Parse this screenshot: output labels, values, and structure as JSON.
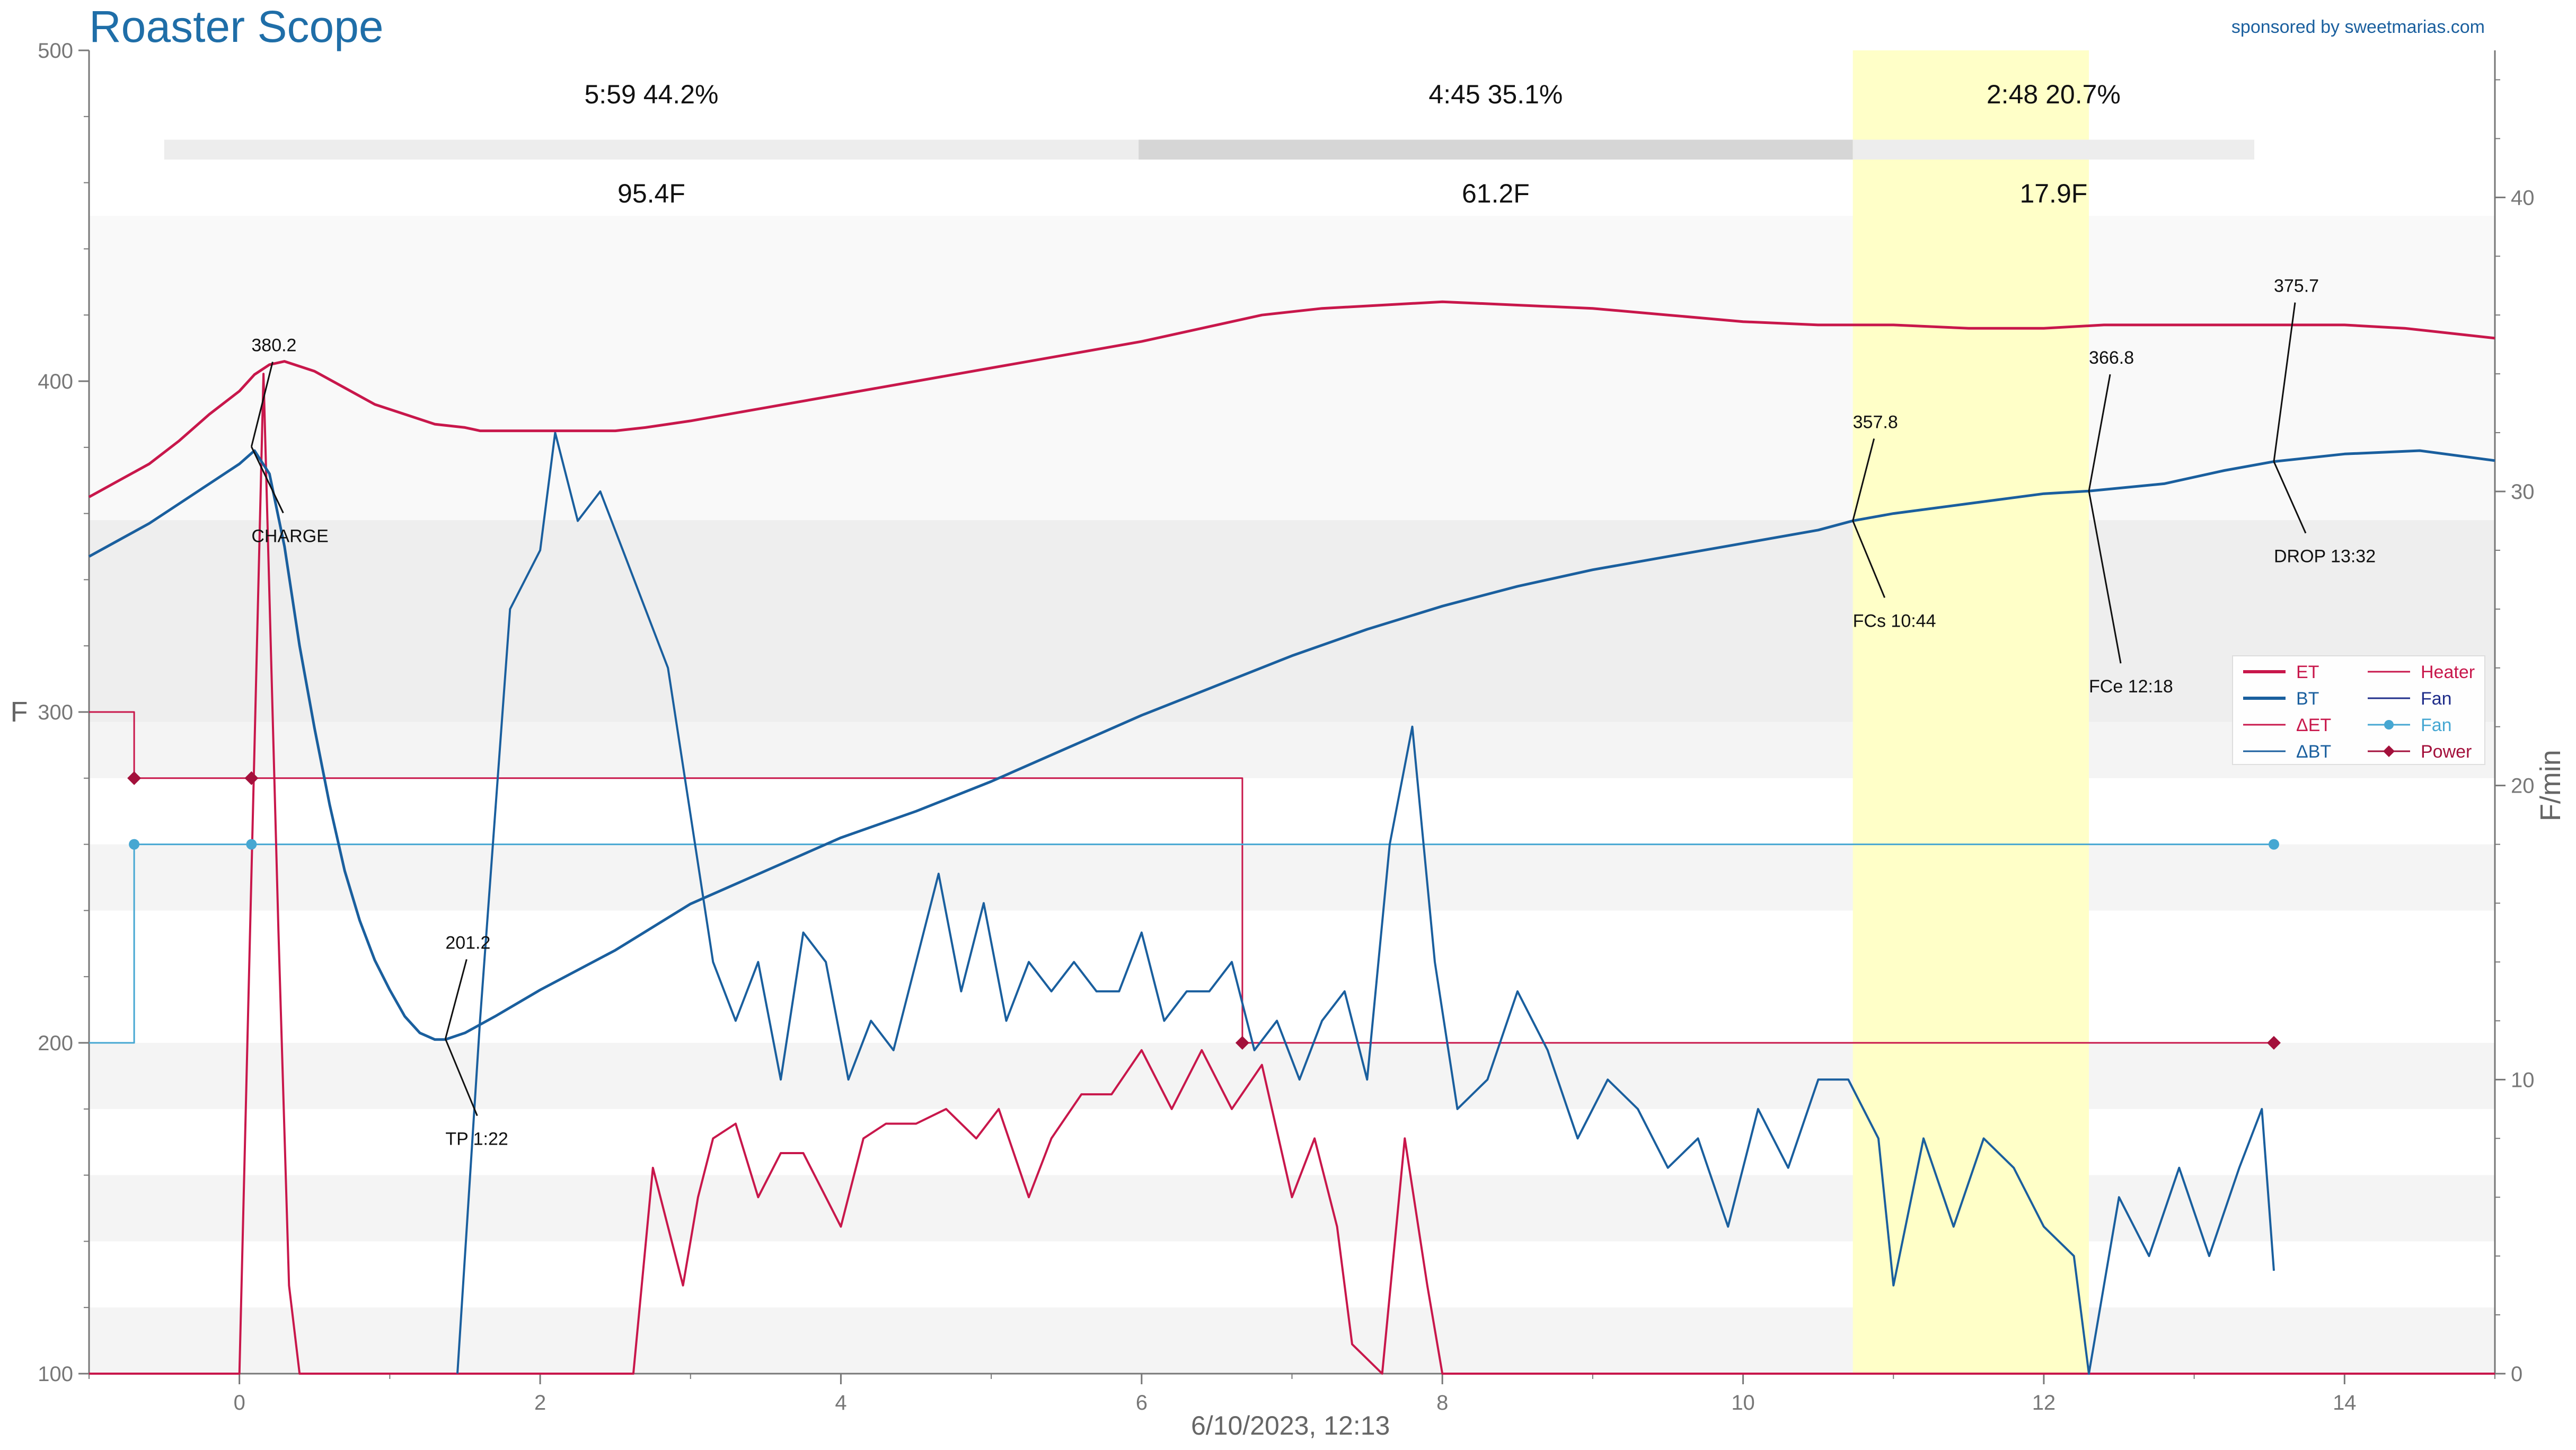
{
  "app": {
    "title": "Roaster Scope",
    "sponsor": "sponsored by sweetmarias.com"
  },
  "chart_data": {
    "type": "line",
    "date_label": "6/10/2023, 12:13",
    "x_axis": {
      "label": "",
      "range": [
        -1.0,
        15.0
      ],
      "ticks": [
        "0",
        "2",
        "4",
        "6",
        "8",
        "10",
        "12",
        "14"
      ]
    },
    "y_left": {
      "label": "F",
      "range": [
        100,
        500
      ],
      "ticks": [
        "100",
        "200",
        "300",
        "400",
        "500"
      ]
    },
    "y_right": {
      "label": "F/min",
      "range": [
        0,
        45
      ],
      "ticks": [
        "0",
        "10",
        "20",
        "30",
        "40"
      ]
    },
    "first_crack_window": {
      "start": 10.73,
      "end": 12.3,
      "color": "#ffffc8"
    },
    "phases": [
      {
        "time": "5:59",
        "percent": "44.2%",
        "rise": "95.4F",
        "start": -0.5,
        "end": 5.98
      },
      {
        "time": "4:45",
        "percent": "35.1%",
        "rise": "61.2F",
        "start": 5.98,
        "end": 10.73
      },
      {
        "time": "2:48",
        "percent": "20.7%",
        "rise": "17.9F",
        "start": 10.73,
        "end": 13.53
      }
    ],
    "legend": {
      "placement": "right",
      "items": [
        {
          "label": "ET",
          "color": "#c8174b",
          "style": "thick"
        },
        {
          "label": "Heater",
          "color": "#c8174b",
          "style": "thin"
        },
        {
          "label": "BT",
          "color": "#1a5f9e",
          "style": "thick"
        },
        {
          "label": "Fan",
          "color": "#1f2d8a",
          "style": "thin"
        },
        {
          "label": "ΔET",
          "color": "#c8174b",
          "style": "thin"
        },
        {
          "label": "Fan",
          "color": "#46a7d2",
          "style": "marker"
        },
        {
          "label": "ΔBT",
          "color": "#1a5f9e",
          "style": "thin"
        },
        {
          "label": "Power",
          "color": "#a3103b",
          "style": "diamond"
        }
      ]
    },
    "series": {
      "ET": {
        "color": "#c8174b",
        "axis": "left",
        "points": [
          [
            -1.0,
            365
          ],
          [
            -0.8,
            370
          ],
          [
            -0.6,
            375
          ],
          [
            -0.4,
            382
          ],
          [
            -0.2,
            390
          ],
          [
            0.0,
            397
          ],
          [
            0.1,
            402
          ],
          [
            0.2,
            405
          ],
          [
            0.3,
            406
          ],
          [
            0.5,
            403
          ],
          [
            0.7,
            398
          ],
          [
            0.9,
            393
          ],
          [
            1.1,
            390
          ],
          [
            1.3,
            387
          ],
          [
            1.5,
            386
          ],
          [
            1.6,
            385
          ],
          [
            2.0,
            385
          ],
          [
            2.5,
            385
          ],
          [
            2.7,
            386
          ],
          [
            3.0,
            388
          ],
          [
            3.5,
            392
          ],
          [
            4.0,
            396
          ],
          [
            4.5,
            400
          ],
          [
            5.0,
            404
          ],
          [
            5.5,
            408
          ],
          [
            6.0,
            412
          ],
          [
            6.4,
            416
          ],
          [
            6.8,
            420
          ],
          [
            7.2,
            422
          ],
          [
            7.6,
            423
          ],
          [
            8.0,
            424
          ],
          [
            8.5,
            423
          ],
          [
            9.0,
            422
          ],
          [
            9.5,
            420
          ],
          [
            10.0,
            418
          ],
          [
            10.5,
            417
          ],
          [
            11.0,
            417
          ],
          [
            11.5,
            416
          ],
          [
            12.0,
            416
          ],
          [
            12.4,
            417
          ],
          [
            12.8,
            417
          ],
          [
            13.2,
            417
          ],
          [
            13.6,
            417
          ],
          [
            14.0,
            417
          ],
          [
            14.4,
            416
          ],
          [
            14.8,
            414
          ],
          [
            15.0,
            413
          ]
        ]
      },
      "BT": {
        "color": "#1a5f9e",
        "axis": "left",
        "points": [
          [
            -1.0,
            347
          ],
          [
            -0.8,
            352
          ],
          [
            -0.6,
            357
          ],
          [
            -0.4,
            363
          ],
          [
            -0.2,
            369
          ],
          [
            -0.0,
            375
          ],
          [
            0.1,
            379
          ],
          [
            0.2,
            372
          ],
          [
            0.3,
            350
          ],
          [
            0.4,
            320
          ],
          [
            0.5,
            295
          ],
          [
            0.6,
            272
          ],
          [
            0.7,
            252
          ],
          [
            0.8,
            237
          ],
          [
            0.9,
            225
          ],
          [
            1.0,
            216
          ],
          [
            1.1,
            208
          ],
          [
            1.2,
            203
          ],
          [
            1.3,
            201
          ],
          [
            1.37,
            201
          ],
          [
            1.5,
            203
          ],
          [
            1.7,
            208
          ],
          [
            2.0,
            216
          ],
          [
            2.5,
            228
          ],
          [
            3.0,
            242
          ],
          [
            3.5,
            252
          ],
          [
            4.0,
            262
          ],
          [
            4.5,
            270
          ],
          [
            5.0,
            279
          ],
          [
            5.5,
            289
          ],
          [
            6.0,
            299
          ],
          [
            6.5,
            308
          ],
          [
            7.0,
            317
          ],
          [
            7.5,
            325
          ],
          [
            8.0,
            332
          ],
          [
            8.5,
            338
          ],
          [
            9.0,
            343
          ],
          [
            9.5,
            347
          ],
          [
            10.0,
            351
          ],
          [
            10.5,
            355
          ],
          [
            10.73,
            357.8
          ],
          [
            11.0,
            360
          ],
          [
            11.5,
            363
          ],
          [
            12.0,
            366
          ],
          [
            12.3,
            366.8
          ],
          [
            12.8,
            369
          ],
          [
            13.2,
            373
          ],
          [
            13.53,
            375.7
          ],
          [
            14.0,
            378
          ],
          [
            14.5,
            379
          ],
          [
            15.0,
            376
          ]
        ]
      },
      "dET": {
        "color": "#c8174b",
        "axis": "right",
        "points": [
          [
            -1.0,
            0
          ],
          [
            0.0,
            0
          ],
          [
            0.16,
            34
          ],
          [
            0.26,
            15
          ],
          [
            0.33,
            3
          ],
          [
            0.4,
            0
          ],
          [
            2.4,
            0
          ],
          [
            2.62,
            0
          ],
          [
            2.75,
            7
          ],
          [
            2.85,
            5
          ],
          [
            2.95,
            3
          ],
          [
            3.05,
            6
          ],
          [
            3.15,
            8
          ],
          [
            3.3,
            8.5
          ],
          [
            3.45,
            6
          ],
          [
            3.6,
            7.5
          ],
          [
            3.75,
            7.5
          ],
          [
            3.9,
            6
          ],
          [
            4.0,
            5
          ],
          [
            4.15,
            8
          ],
          [
            4.3,
            8.5
          ],
          [
            4.5,
            8.5
          ],
          [
            4.7,
            9
          ],
          [
            4.9,
            8
          ],
          [
            5.05,
            9
          ],
          [
            5.25,
            6
          ],
          [
            5.4,
            8
          ],
          [
            5.6,
            9.5
          ],
          [
            5.8,
            9.5
          ],
          [
            6.0,
            11
          ],
          [
            6.2,
            9
          ],
          [
            6.4,
            11
          ],
          [
            6.6,
            9
          ],
          [
            6.8,
            10.5
          ],
          [
            7.0,
            6
          ],
          [
            7.15,
            8
          ],
          [
            7.3,
            5
          ],
          [
            7.4,
            1
          ],
          [
            7.6,
            0
          ],
          [
            7.75,
            8
          ],
          [
            7.9,
            3
          ],
          [
            8.0,
            0
          ],
          [
            15.0,
            0
          ]
        ]
      },
      "dBT": {
        "color": "#1a5f9e",
        "axis": "right",
        "points": [
          [
            1.45,
            0
          ],
          [
            1.6,
            12
          ],
          [
            1.8,
            26
          ],
          [
            2.0,
            28
          ],
          [
            2.1,
            32
          ],
          [
            2.25,
            29
          ],
          [
            2.4,
            30
          ],
          [
            2.55,
            28
          ],
          [
            2.7,
            26
          ],
          [
            2.85,
            24
          ],
          [
            3.0,
            19
          ],
          [
            3.15,
            14
          ],
          [
            3.3,
            12
          ],
          [
            3.45,
            14
          ],
          [
            3.6,
            10
          ],
          [
            3.75,
            15
          ],
          [
            3.9,
            14
          ],
          [
            4.05,
            10
          ],
          [
            4.2,
            12
          ],
          [
            4.35,
            11
          ],
          [
            4.5,
            14
          ],
          [
            4.65,
            17
          ],
          [
            4.8,
            13
          ],
          [
            4.95,
            16
          ],
          [
            5.1,
            12
          ],
          [
            5.25,
            14
          ],
          [
            5.4,
            13
          ],
          [
            5.55,
            14
          ],
          [
            5.7,
            13
          ],
          [
            5.85,
            13
          ],
          [
            6.0,
            15
          ],
          [
            6.15,
            12
          ],
          [
            6.3,
            13
          ],
          [
            6.45,
            13
          ],
          [
            6.6,
            14
          ],
          [
            6.75,
            11
          ],
          [
            6.9,
            12
          ],
          [
            7.05,
            10
          ],
          [
            7.2,
            12
          ],
          [
            7.35,
            13
          ],
          [
            7.5,
            10
          ],
          [
            7.65,
            18
          ],
          [
            7.8,
            22
          ],
          [
            7.95,
            14
          ],
          [
            8.1,
            9
          ],
          [
            8.3,
            10
          ],
          [
            8.5,
            13
          ],
          [
            8.7,
            11
          ],
          [
            8.9,
            8
          ],
          [
            9.1,
            10
          ],
          [
            9.3,
            9
          ],
          [
            9.5,
            7
          ],
          [
            9.7,
            8
          ],
          [
            9.9,
            5
          ],
          [
            10.1,
            9
          ],
          [
            10.3,
            7
          ],
          [
            10.5,
            10
          ],
          [
            10.7,
            10
          ],
          [
            10.9,
            8
          ],
          [
            11.0,
            3
          ],
          [
            11.2,
            8
          ],
          [
            11.4,
            5
          ],
          [
            11.6,
            8
          ],
          [
            11.8,
            7
          ],
          [
            12.0,
            5
          ],
          [
            12.2,
            4
          ],
          [
            12.3,
            0
          ],
          [
            12.5,
            6
          ],
          [
            12.7,
            4
          ],
          [
            12.9,
            7
          ],
          [
            13.1,
            4
          ],
          [
            13.3,
            7
          ],
          [
            13.45,
            9
          ],
          [
            13.53,
            3.5
          ]
        ]
      },
      "Heater": {
        "color": "#c8174b",
        "axis": "left",
        "points": [
          [
            -1.0,
            300
          ],
          [
            -0.7,
            300
          ],
          [
            -0.7,
            280
          ],
          [
            6.67,
            280
          ],
          [
            6.67,
            200
          ],
          [
            13.53,
            200
          ]
        ]
      },
      "Fan": {
        "color": "#46a7d2",
        "axis": "left",
        "points": [
          [
            -1.0,
            200
          ],
          [
            -0.7,
            200
          ],
          [
            -0.7,
            260
          ],
          [
            13.53,
            260
          ]
        ]
      },
      "Power": {
        "color": "#a3103b",
        "axis": "left",
        "markers": [
          [
            -0.7,
            280
          ],
          [
            0.08,
            280
          ],
          [
            6.67,
            200
          ],
          [
            13.53,
            200
          ]
        ]
      },
      "FanMarkers": {
        "color": "#46a7d2",
        "axis": "left",
        "markers": [
          [
            -0.7,
            260
          ],
          [
            0.08,
            260
          ],
          [
            13.53,
            260
          ]
        ]
      }
    },
    "annotations": [
      {
        "value": "380.2",
        "event": "CHARGE",
        "x": 0.08,
        "y": 380.2
      },
      {
        "value": "201.2",
        "event": "TP 1:22",
        "x": 1.37,
        "y": 201.2
      },
      {
        "value": "357.8",
        "event": "FCs 10:44",
        "x": 10.73,
        "y": 357.8
      },
      {
        "value": "366.8",
        "event": "FCe 12:18",
        "x": 12.3,
        "y": 366.8
      },
      {
        "value": "375.7",
        "event": "DROP 13:32",
        "x": 13.53,
        "y": 375.7
      }
    ]
  }
}
